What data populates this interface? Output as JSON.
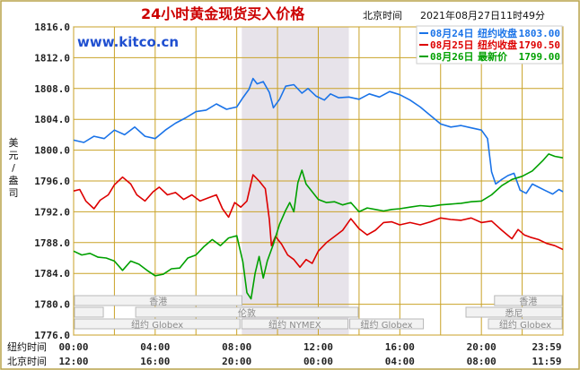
{
  "header": {
    "title": "24小时黄金现货买入价格",
    "timestamp_label": "北京时间",
    "timestamp": "2021年08月27日11时49分",
    "site": "www.kitco.cn"
  },
  "legend": [
    {
      "date": "08月24日",
      "label": "纽约收盘",
      "value": "1803.00",
      "color": "#1a73e8"
    },
    {
      "date": "08月25日",
      "label": "纽约收盘",
      "value": "1790.50",
      "color": "#dd0000"
    },
    {
      "date": "08月26日",
      "label": "最新价",
      "value": "1799.00",
      "color": "#00a000"
    }
  ],
  "y_unit": [
    "美",
    "元",
    "/",
    "盎",
    "司"
  ],
  "x_rows": {
    "ny_label": "纽约时间",
    "bj_label": "北京时间",
    "ny_ticks": [
      "00:00",
      "04:00",
      "08:00",
      "12:00",
      "16:00",
      "20:00",
      "23:59"
    ],
    "bj_ticks": [
      "12:00",
      "16:00",
      "20:00",
      "00:00",
      "04:00",
      "08:00",
      "11:59"
    ]
  },
  "markets": {
    "hongkong1": "香港",
    "hongkong2": "香港",
    "london": "伦敦",
    "ny_globex1": "纽约 Globex",
    "ny_nymex": "纽约 NYMEX",
    "ny_globex2": "纽约 Globex",
    "ny_globex3": "纽约 Globex",
    "sydney": "悉尼"
  },
  "chart_data": {
    "type": "line",
    "title": "24小时黄金现货买入价格",
    "xlabel": "纽约时间",
    "ylabel": "美元/盎司",
    "ylim": [
      1776,
      1816
    ],
    "yticks": [
      "1816.0",
      "1812.0",
      "1808.0",
      "1804.0",
      "1800.0",
      "1796.0",
      "1792.0",
      "1788.0",
      "1784.0",
      "1780.0",
      "1776.0"
    ],
    "xlim": [
      0,
      24
    ],
    "highlight_range_hours": [
      8.25,
      13.5
    ],
    "series": [
      {
        "name": "08月24日",
        "color": "#1a73e8",
        "points": [
          [
            0,
            1801.3
          ],
          [
            0.5,
            1801.0
          ],
          [
            1,
            1801.8
          ],
          [
            1.5,
            1801.5
          ],
          [
            2,
            1802.6
          ],
          [
            2.5,
            1802.0
          ],
          [
            3,
            1803.0
          ],
          [
            3.5,
            1801.8
          ],
          [
            4,
            1801.5
          ],
          [
            4.5,
            1802.6
          ],
          [
            5,
            1803.5
          ],
          [
            5.5,
            1804.2
          ],
          [
            6,
            1805.0
          ],
          [
            6.5,
            1805.2
          ],
          [
            7,
            1806.0
          ],
          [
            7.5,
            1805.3
          ],
          [
            8,
            1805.6
          ],
          [
            8.3,
            1806.8
          ],
          [
            8.6,
            1807.9
          ],
          [
            8.8,
            1809.3
          ],
          [
            9.0,
            1808.6
          ],
          [
            9.3,
            1808.9
          ],
          [
            9.6,
            1807.5
          ],
          [
            9.8,
            1805.5
          ],
          [
            10.1,
            1806.6
          ],
          [
            10.4,
            1808.3
          ],
          [
            10.8,
            1808.5
          ],
          [
            11.2,
            1807.4
          ],
          [
            11.5,
            1808.0
          ],
          [
            11.9,
            1807.0
          ],
          [
            12.3,
            1806.5
          ],
          [
            12.6,
            1807.3
          ],
          [
            13,
            1806.8
          ],
          [
            13.5,
            1806.9
          ],
          [
            14,
            1806.6
          ],
          [
            14.5,
            1807.3
          ],
          [
            15,
            1806.9
          ],
          [
            15.5,
            1807.6
          ],
          [
            16,
            1807.2
          ],
          [
            16.5,
            1806.5
          ],
          [
            17,
            1805.6
          ],
          [
            17.5,
            1804.5
          ],
          [
            18,
            1803.4
          ],
          [
            18.5,
            1803.0
          ],
          [
            19,
            1803.2
          ],
          [
            19.5,
            1802.9
          ],
          [
            20,
            1802.6
          ],
          [
            20.3,
            1801.5
          ],
          [
            20.5,
            1797.2
          ],
          [
            20.7,
            1795.6
          ],
          [
            21,
            1796.2
          ],
          [
            21.3,
            1796.7
          ],
          [
            21.6,
            1797.0
          ],
          [
            21.9,
            1794.8
          ],
          [
            22.2,
            1794.4
          ],
          [
            22.5,
            1795.6
          ],
          [
            22.8,
            1795.2
          ],
          [
            23.1,
            1794.8
          ],
          [
            23.5,
            1794.3
          ],
          [
            23.8,
            1794.9
          ],
          [
            24,
            1794.6
          ]
        ]
      },
      {
        "name": "08月25日",
        "color": "#dd0000",
        "points": [
          [
            0,
            1794.7
          ],
          [
            0.3,
            1794.9
          ],
          [
            0.6,
            1793.4
          ],
          [
            1,
            1792.4
          ],
          [
            1.3,
            1793.5
          ],
          [
            1.7,
            1794.2
          ],
          [
            2,
            1795.5
          ],
          [
            2.4,
            1796.5
          ],
          [
            2.8,
            1795.6
          ],
          [
            3.1,
            1794.2
          ],
          [
            3.5,
            1793.4
          ],
          [
            3.9,
            1794.6
          ],
          [
            4.2,
            1795.2
          ],
          [
            4.6,
            1794.2
          ],
          [
            5,
            1794.5
          ],
          [
            5.4,
            1793.6
          ],
          [
            5.8,
            1794.2
          ],
          [
            6.2,
            1793.4
          ],
          [
            6.6,
            1793.8
          ],
          [
            7,
            1794.2
          ],
          [
            7.3,
            1792.4
          ],
          [
            7.6,
            1791.3
          ],
          [
            7.9,
            1793.2
          ],
          [
            8.2,
            1792.6
          ],
          [
            8.5,
            1793.4
          ],
          [
            8.8,
            1796.8
          ],
          [
            9.1,
            1796.0
          ],
          [
            9.4,
            1795.0
          ],
          [
            9.6,
            1791.0
          ],
          [
            9.7,
            1787.6
          ],
          [
            9.9,
            1788.8
          ],
          [
            10.2,
            1787.8
          ],
          [
            10.5,
            1786.4
          ],
          [
            10.8,
            1785.8
          ],
          [
            11.1,
            1784.8
          ],
          [
            11.4,
            1785.8
          ],
          [
            11.7,
            1785.3
          ],
          [
            12.0,
            1786.9
          ],
          [
            12.4,
            1788.0
          ],
          [
            12.8,
            1788.8
          ],
          [
            13.2,
            1789.6
          ],
          [
            13.6,
            1791.1
          ],
          [
            14.0,
            1789.8
          ],
          [
            14.4,
            1789.0
          ],
          [
            14.8,
            1789.6
          ],
          [
            15.2,
            1790.6
          ],
          [
            15.6,
            1790.7
          ],
          [
            16.0,
            1790.3
          ],
          [
            16.5,
            1790.6
          ],
          [
            17.0,
            1790.3
          ],
          [
            17.5,
            1790.7
          ],
          [
            18,
            1791.2
          ],
          [
            18.5,
            1791.0
          ],
          [
            19,
            1790.9
          ],
          [
            19.5,
            1791.2
          ],
          [
            20,
            1790.6
          ],
          [
            20.5,
            1790.8
          ],
          [
            21,
            1789.6
          ],
          [
            21.5,
            1788.5
          ],
          [
            21.8,
            1789.7
          ],
          [
            22.1,
            1789.0
          ],
          [
            22.4,
            1788.7
          ],
          [
            22.8,
            1788.4
          ],
          [
            23.2,
            1787.9
          ],
          [
            23.6,
            1787.6
          ],
          [
            24,
            1787.1
          ]
        ]
      },
      {
        "name": "08月26日",
        "color": "#00a000",
        "points": [
          [
            0,
            1786.9
          ],
          [
            0.4,
            1786.4
          ],
          [
            0.8,
            1786.6
          ],
          [
            1.2,
            1786.1
          ],
          [
            1.6,
            1786.0
          ],
          [
            2.0,
            1785.6
          ],
          [
            2.4,
            1784.4
          ],
          [
            2.8,
            1785.6
          ],
          [
            3.2,
            1785.2
          ],
          [
            3.6,
            1784.4
          ],
          [
            4.0,
            1783.7
          ],
          [
            4.4,
            1783.9
          ],
          [
            4.8,
            1784.6
          ],
          [
            5.2,
            1784.7
          ],
          [
            5.6,
            1786.0
          ],
          [
            6.0,
            1786.4
          ],
          [
            6.4,
            1787.5
          ],
          [
            6.8,
            1788.4
          ],
          [
            7.2,
            1787.6
          ],
          [
            7.6,
            1788.6
          ],
          [
            8.0,
            1788.9
          ],
          [
            8.3,
            1785.5
          ],
          [
            8.5,
            1781.5
          ],
          [
            8.7,
            1780.7
          ],
          [
            8.9,
            1784.0
          ],
          [
            9.1,
            1786.2
          ],
          [
            9.3,
            1783.4
          ],
          [
            9.5,
            1785.6
          ],
          [
            9.8,
            1787.8
          ],
          [
            10.1,
            1790.4
          ],
          [
            10.4,
            1792.2
          ],
          [
            10.6,
            1793.2
          ],
          [
            10.8,
            1792.0
          ],
          [
            11.0,
            1795.8
          ],
          [
            11.2,
            1797.4
          ],
          [
            11.4,
            1795.6
          ],
          [
            11.7,
            1794.6
          ],
          [
            12.0,
            1793.6
          ],
          [
            12.4,
            1793.2
          ],
          [
            12.8,
            1793.3
          ],
          [
            13.2,
            1792.9
          ],
          [
            13.6,
            1793.2
          ],
          [
            14.0,
            1792.0
          ],
          [
            14.4,
            1792.5
          ],
          [
            14.8,
            1792.3
          ],
          [
            15.2,
            1792.1
          ],
          [
            15.6,
            1792.3
          ],
          [
            16.0,
            1792.4
          ],
          [
            16.5,
            1792.6
          ],
          [
            17.0,
            1792.8
          ],
          [
            17.5,
            1792.7
          ],
          [
            18,
            1792.9
          ],
          [
            18.5,
            1793.0
          ],
          [
            19,
            1793.1
          ],
          [
            19.5,
            1793.3
          ],
          [
            20,
            1793.4
          ],
          [
            20.5,
            1794.2
          ],
          [
            21,
            1795.4
          ],
          [
            21.5,
            1796.2
          ],
          [
            22,
            1796.6
          ],
          [
            22.5,
            1797.3
          ],
          [
            23,
            1798.6
          ],
          [
            23.3,
            1799.5
          ],
          [
            23.6,
            1799.2
          ],
          [
            24,
            1799.0
          ]
        ]
      }
    ]
  }
}
